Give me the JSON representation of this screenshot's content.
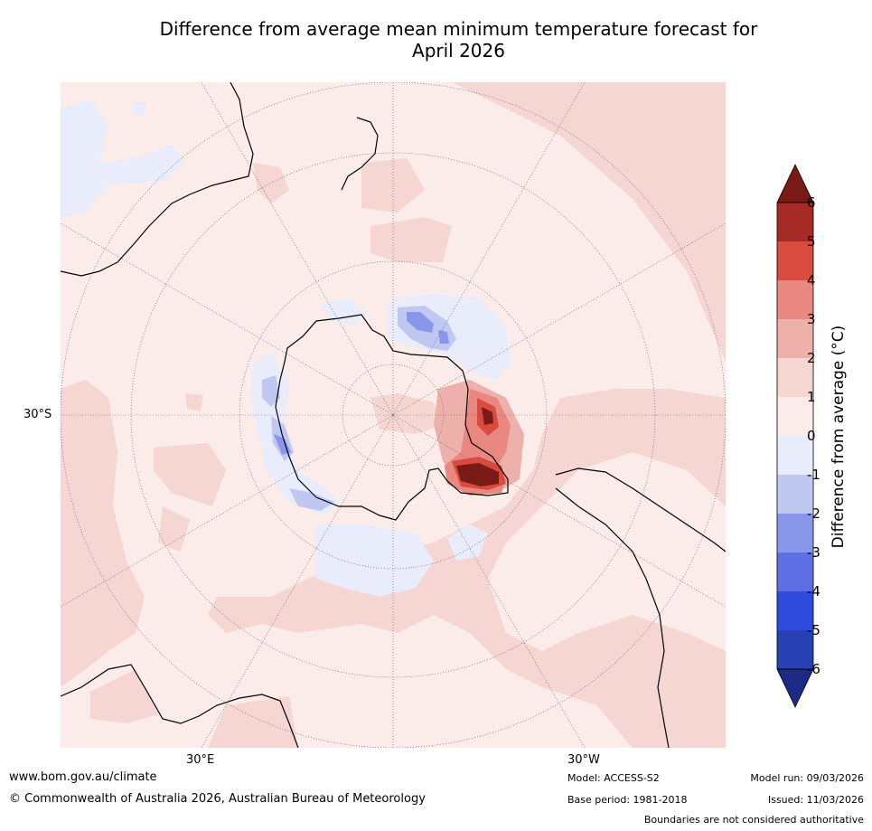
{
  "title": {
    "line1": "Difference from average mean minimum temperature forecast for",
    "line2": "April 2026"
  },
  "colorbar": {
    "title": "Difference from average (°C)",
    "ticks": [
      "6",
      "5",
      "4",
      "3",
      "2",
      "1",
      "0",
      "-1",
      "-2",
      "-3",
      "-4",
      "-5",
      "-6"
    ],
    "colors_top_to_bottom": [
      "#7a1a17",
      "#a62a25",
      "#d94a3f",
      "#e88880",
      "#edb0aa",
      "#f5d6d3",
      "#fbecea",
      "#e8ecfb",
      "#c0c8f2",
      "#8897ea",
      "#5d6fe3",
      "#2f4bde",
      "#2640b2",
      "#1d2a86"
    ]
  },
  "axes": {
    "lat_label": "30°S",
    "lon_label_left": "30°E",
    "lon_label_right": "30°W"
  },
  "map_colors": {
    "base": "#fbecea",
    "warm1": "#f5d6d3",
    "warm2": "#edb0aa",
    "warm3": "#e88880",
    "warm4": "#d94a3f",
    "warm5": "#a62a25",
    "warm6": "#7a1a17",
    "cool1": "#e8ecfb",
    "cool2": "#c0c8f2",
    "cool3": "#8897ea"
  },
  "footer": {
    "url": "www.bom.gov.au/climate",
    "copyright": "© Commonwealth of Australia 2026, Australian Bureau of Meteorology",
    "model": "Model: ACCESS-S2",
    "base_period": "Base period: 1981-2018",
    "model_run": "Model run: 09/03/2026",
    "issued": "Issued: 11/03/2026",
    "disclaimer": "Boundaries are not considered authoritative"
  }
}
